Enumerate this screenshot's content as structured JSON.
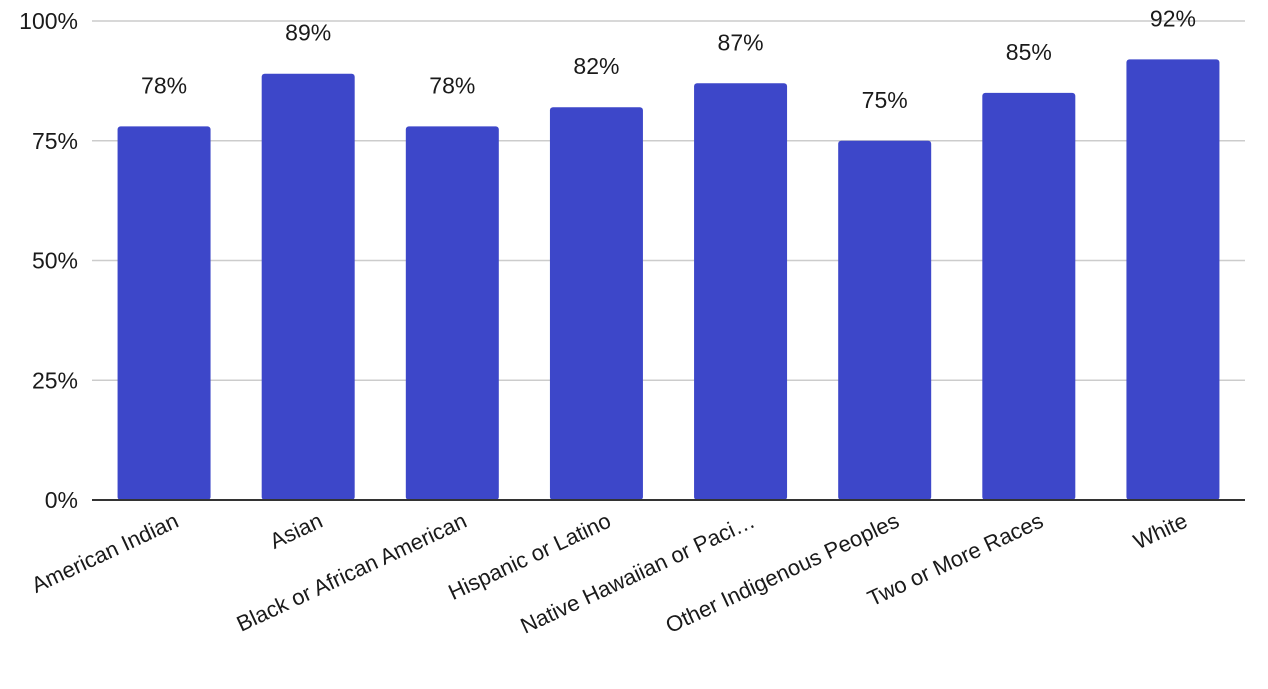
{
  "chart_data": {
    "type": "bar",
    "title": "",
    "xlabel": "",
    "ylabel": "",
    "categories": [
      "American Indian",
      "Asian",
      "Black or African American",
      "Hispanic or Latino",
      "Native Hawaiian or Paci…",
      "Other Indigenous Peoples",
      "Two or More Races",
      "White"
    ],
    "values": [
      78,
      89,
      78,
      82,
      87,
      75,
      85,
      92
    ],
    "value_labels": [
      "78%",
      "89%",
      "78%",
      "82%",
      "87%",
      "75%",
      "85%",
      "92%"
    ],
    "ylim": [
      0,
      100
    ],
    "y_ticks": [
      0,
      25,
      50,
      75,
      100
    ],
    "y_tick_labels": [
      "0%",
      "25%",
      "50%",
      "75%",
      "100%"
    ],
    "bar_color": "#3d47c9",
    "grid": true,
    "legend": "none"
  }
}
